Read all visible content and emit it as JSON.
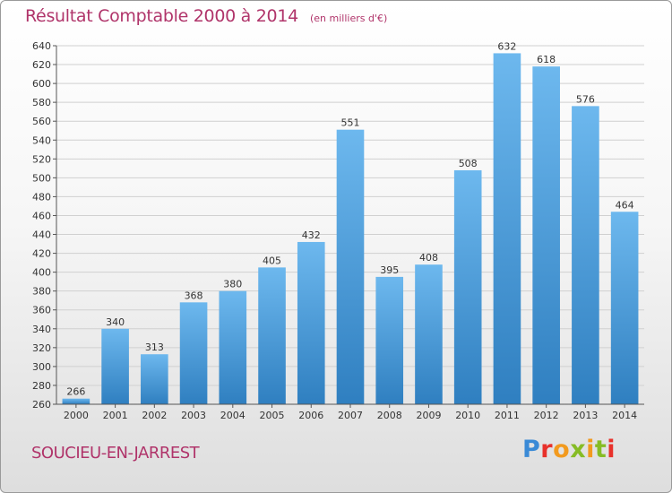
{
  "brand": {
    "name": "Proxiti",
    "colors": [
      "#3a8ad6",
      "#f29a1e",
      "#86bc25",
      "#e8312b"
    ]
  },
  "commune": "SOUCIEU-EN-JARREST",
  "colors": {
    "bar_light": "#6db8ee",
    "bar_dark": "#2f7fc0",
    "title": "#b0346a",
    "grid": "#d0d0d0"
  },
  "chart_data": {
    "type": "bar",
    "title": "Résultat Comptable 2000 à 2014",
    "subtitle": "(en milliers d'€)",
    "xlabel": "",
    "ylabel": "",
    "categories": [
      "2000",
      "2001",
      "2002",
      "2003",
      "2004",
      "2005",
      "2006",
      "2007",
      "2008",
      "2009",
      "2010",
      "2011",
      "2012",
      "2013",
      "2014"
    ],
    "values": [
      266,
      340,
      313,
      368,
      380,
      405,
      432,
      551,
      395,
      408,
      508,
      632,
      618,
      576,
      464
    ],
    "ylim": [
      260,
      640
    ],
    "yticks": [
      260,
      280,
      300,
      320,
      340,
      360,
      380,
      400,
      420,
      440,
      460,
      480,
      500,
      520,
      540,
      560,
      580,
      600,
      620,
      640
    ],
    "grid": true,
    "legend": "none"
  }
}
